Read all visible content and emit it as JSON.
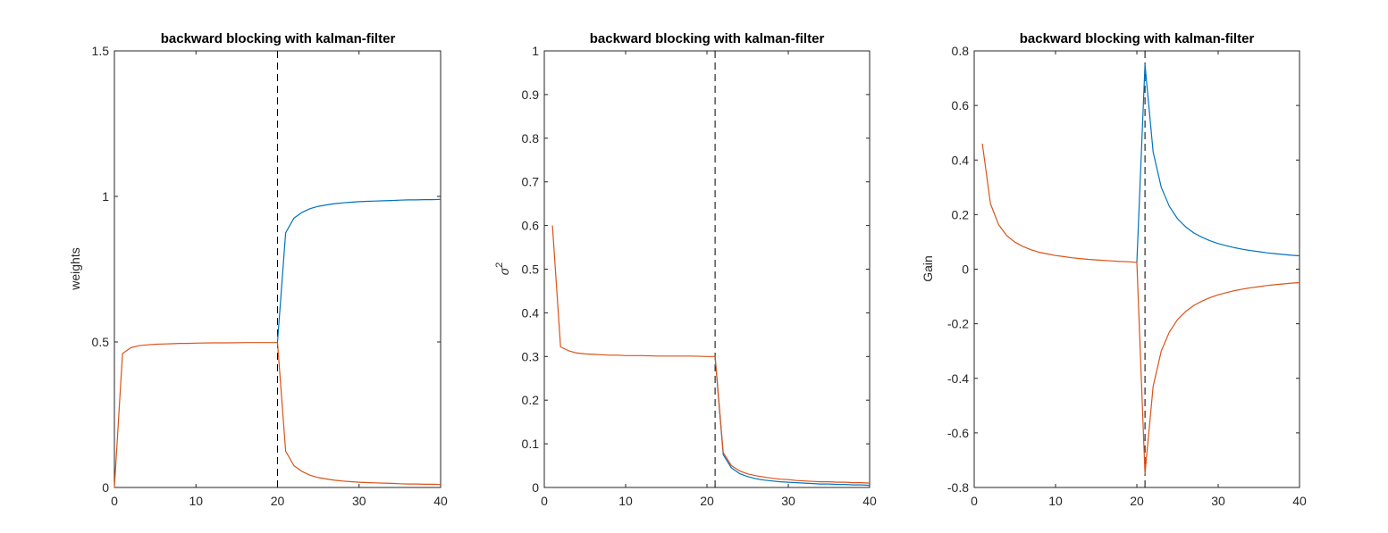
{
  "chart_data": [
    {
      "type": "line",
      "title": "backward blocking with kalman-filter",
      "xlabel": "",
      "ylabel": "weights",
      "xlim": [
        0,
        40
      ],
      "ylim": [
        0,
        1.5
      ],
      "xticks": [
        "0",
        "10",
        "20",
        "30",
        "40"
      ],
      "yticks": [
        "0",
        "0.5",
        "1",
        "1.5"
      ],
      "grid": false,
      "vline": 20,
      "series": [
        {
          "color": "#0072BD",
          "x": [
            20,
            21,
            22,
            23,
            24,
            25,
            26,
            27,
            28,
            29,
            30,
            31,
            32,
            33,
            34,
            35,
            36,
            37,
            38,
            39,
            40
          ],
          "y": [
            0.5,
            0.875,
            0.925,
            0.945,
            0.958,
            0.966,
            0.971,
            0.975,
            0.978,
            0.98,
            0.982,
            0.983,
            0.984,
            0.985,
            0.986,
            0.987,
            0.988,
            0.988,
            0.989,
            0.989,
            0.99
          ]
        },
        {
          "color": "#D95319",
          "x": [
            0,
            1,
            2,
            3,
            4,
            5,
            6,
            7,
            8,
            9,
            10,
            12,
            14,
            16,
            18,
            20,
            21,
            22,
            23,
            24,
            25,
            26,
            27,
            28,
            29,
            30,
            31,
            32,
            33,
            34,
            35,
            36,
            37,
            38,
            39,
            40
          ],
          "y": [
            0,
            0.46,
            0.48,
            0.487,
            0.49,
            0.492,
            0.493,
            0.494,
            0.495,
            0.495,
            0.496,
            0.497,
            0.497,
            0.498,
            0.498,
            0.498,
            0.125,
            0.075,
            0.055,
            0.042,
            0.034,
            0.029,
            0.025,
            0.022,
            0.02,
            0.018,
            0.017,
            0.016,
            0.015,
            0.014,
            0.013,
            0.012,
            0.012,
            0.011,
            0.011,
            0.01
          ]
        }
      ]
    },
    {
      "type": "line",
      "title": "backward blocking with kalman-filter",
      "xlabel": "",
      "ylabel": "σ²",
      "ylabel_base": "σ",
      "ylabel_sup": "2",
      "xlim": [
        0,
        40
      ],
      "ylim": [
        0,
        1
      ],
      "xticks": [
        "0",
        "10",
        "20",
        "30",
        "40"
      ],
      "yticks": [
        "0",
        "0.1",
        "0.2",
        "0.3",
        "0.4",
        "0.5",
        "0.6",
        "0.7",
        "0.8",
        "0.9",
        "1"
      ],
      "grid": false,
      "vline": 21,
      "series": [
        {
          "color": "#0072BD",
          "x": [
            21,
            22,
            23,
            24,
            25,
            26,
            27,
            28,
            29,
            30,
            31,
            32,
            33,
            34,
            35,
            36,
            37,
            38,
            39,
            40
          ],
          "y": [
            0.3,
            0.075,
            0.045,
            0.032,
            0.025,
            0.02,
            0.017,
            0.015,
            0.013,
            0.012,
            0.011,
            0.01,
            0.009,
            0.008,
            0.008,
            0.007,
            0.007,
            0.006,
            0.006,
            0.005
          ]
        },
        {
          "color": "#D95319",
          "x": [
            1,
            2,
            3,
            4,
            5,
            6,
            7,
            8,
            9,
            10,
            12,
            14,
            16,
            18,
            20,
            21,
            22,
            23,
            24,
            25,
            26,
            27,
            28,
            29,
            30,
            31,
            32,
            33,
            34,
            35,
            36,
            37,
            38,
            39,
            40
          ],
          "y": [
            0.6,
            0.322,
            0.313,
            0.308,
            0.306,
            0.305,
            0.304,
            0.303,
            0.303,
            0.302,
            0.302,
            0.301,
            0.301,
            0.301,
            0.3,
            0.3,
            0.08,
            0.05,
            0.038,
            0.031,
            0.027,
            0.024,
            0.021,
            0.019,
            0.018,
            0.016,
            0.015,
            0.014,
            0.013,
            0.013,
            0.012,
            0.012,
            0.011,
            0.011,
            0.01
          ]
        }
      ]
    },
    {
      "type": "line",
      "title": "backward blocking with kalman-filter",
      "xlabel": "",
      "ylabel": "Gain",
      "xlim": [
        0,
        40
      ],
      "ylim": [
        -0.8,
        0.8
      ],
      "xticks": [
        "0",
        "10",
        "20",
        "30",
        "40"
      ],
      "yticks": [
        "-0.8",
        "-0.6",
        "-0.4",
        "-0.2",
        "0",
        "0.2",
        "0.4",
        "0.6",
        "0.8"
      ],
      "grid": false,
      "vline": 21,
      "series": [
        {
          "color": "#0072BD",
          "x": [
            20,
            21,
            22,
            23,
            24,
            25,
            26,
            27,
            28,
            29,
            30,
            31,
            32,
            33,
            34,
            35,
            36,
            37,
            38,
            39,
            40
          ],
          "y": [
            0.025,
            0.75,
            0.43,
            0.3,
            0.23,
            0.185,
            0.155,
            0.133,
            0.117,
            0.104,
            0.094,
            0.086,
            0.079,
            0.073,
            0.068,
            0.064,
            0.06,
            0.057,
            0.054,
            0.051,
            0.049
          ]
        },
        {
          "color": "#D95319",
          "x": [
            1,
            2,
            3,
            4,
            5,
            6,
            7,
            8,
            9,
            10,
            11,
            12,
            13,
            14,
            15,
            16,
            17,
            18,
            19,
            20,
            21,
            22,
            23,
            24,
            25,
            26,
            27,
            28,
            29,
            30,
            31,
            32,
            33,
            34,
            35,
            36,
            37,
            38,
            39,
            40
          ],
          "y": [
            0.46,
            0.24,
            0.163,
            0.123,
            0.099,
            0.083,
            0.071,
            0.062,
            0.056,
            0.05,
            0.046,
            0.042,
            0.039,
            0.036,
            0.034,
            0.032,
            0.03,
            0.028,
            0.027,
            0.025,
            -0.75,
            -0.43,
            -0.3,
            -0.23,
            -0.185,
            -0.155,
            -0.133,
            -0.117,
            -0.104,
            -0.094,
            -0.086,
            -0.079,
            -0.073,
            -0.068,
            -0.064,
            -0.06,
            -0.057,
            -0.054,
            -0.051,
            -0.049
          ]
        }
      ]
    }
  ]
}
